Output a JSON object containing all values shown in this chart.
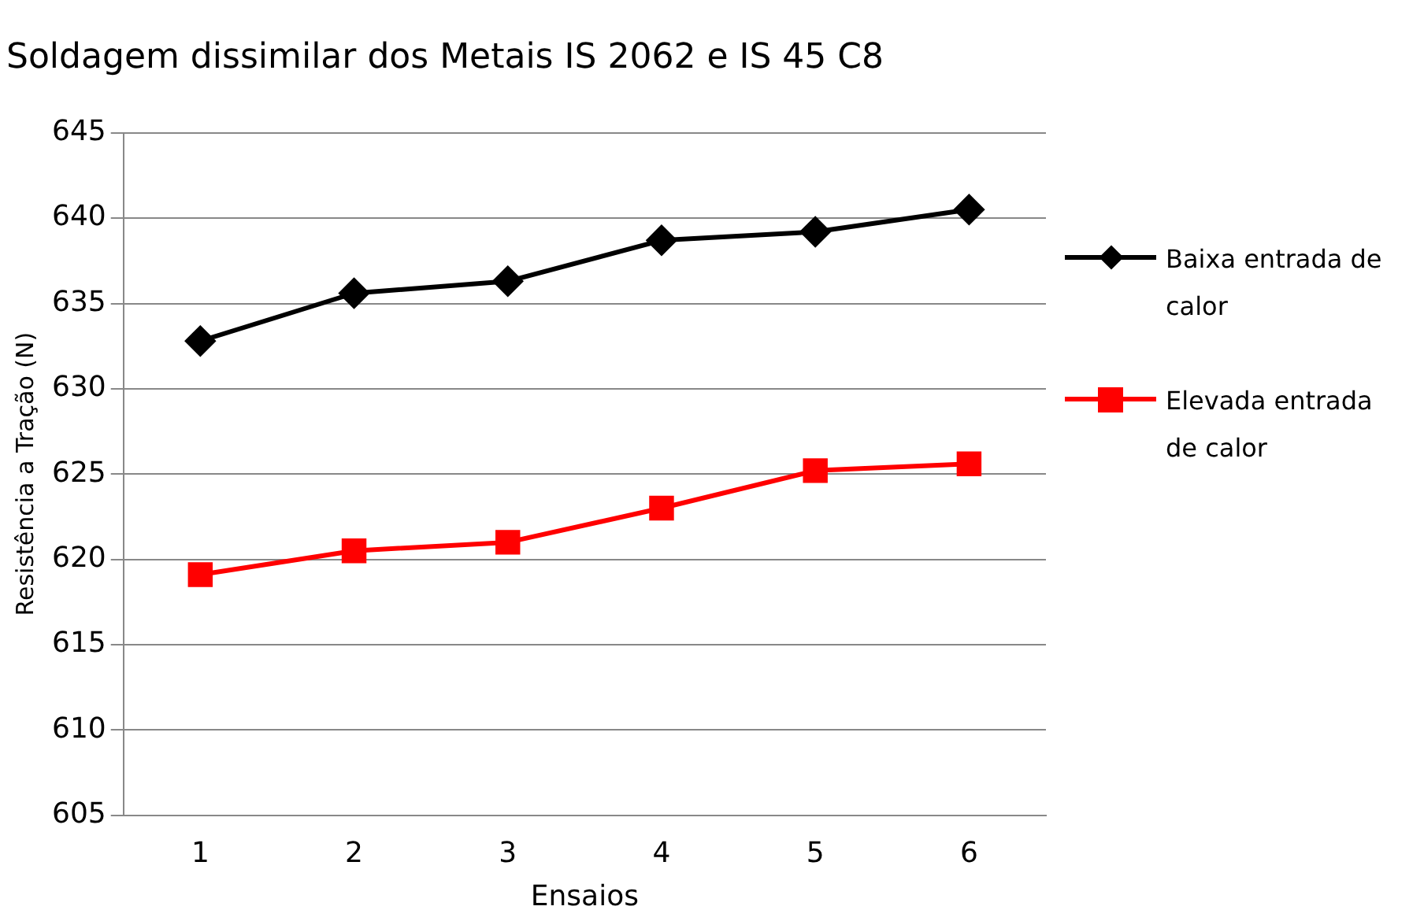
{
  "chart_data": {
    "type": "line",
    "title": "Soldagem dissimilar dos Metais IS 2062 e IS 45 C8",
    "xlabel": "Ensaios",
    "ylabel": "Resistência a Tração (N)",
    "categories": [
      "1",
      "2",
      "3",
      "4",
      "5",
      "6"
    ],
    "series": [
      {
        "name": "Baixa entrada de calor",
        "color": "#000000",
        "marker": "diamond",
        "values": [
          632.8,
          635.6,
          636.3,
          638.7,
          639.2,
          640.5
        ]
      },
      {
        "name": "Elevada entrada de calor",
        "color": "#ff0000",
        "marker": "square",
        "values": [
          619.1,
          620.5,
          621.0,
          623.0,
          625.2,
          625.6
        ]
      }
    ],
    "ylim": [
      605,
      645
    ],
    "yticks": [
      605,
      610,
      615,
      620,
      625,
      630,
      635,
      640,
      645
    ],
    "grid": "y",
    "legend": "right",
    "line_style": "solid"
  }
}
